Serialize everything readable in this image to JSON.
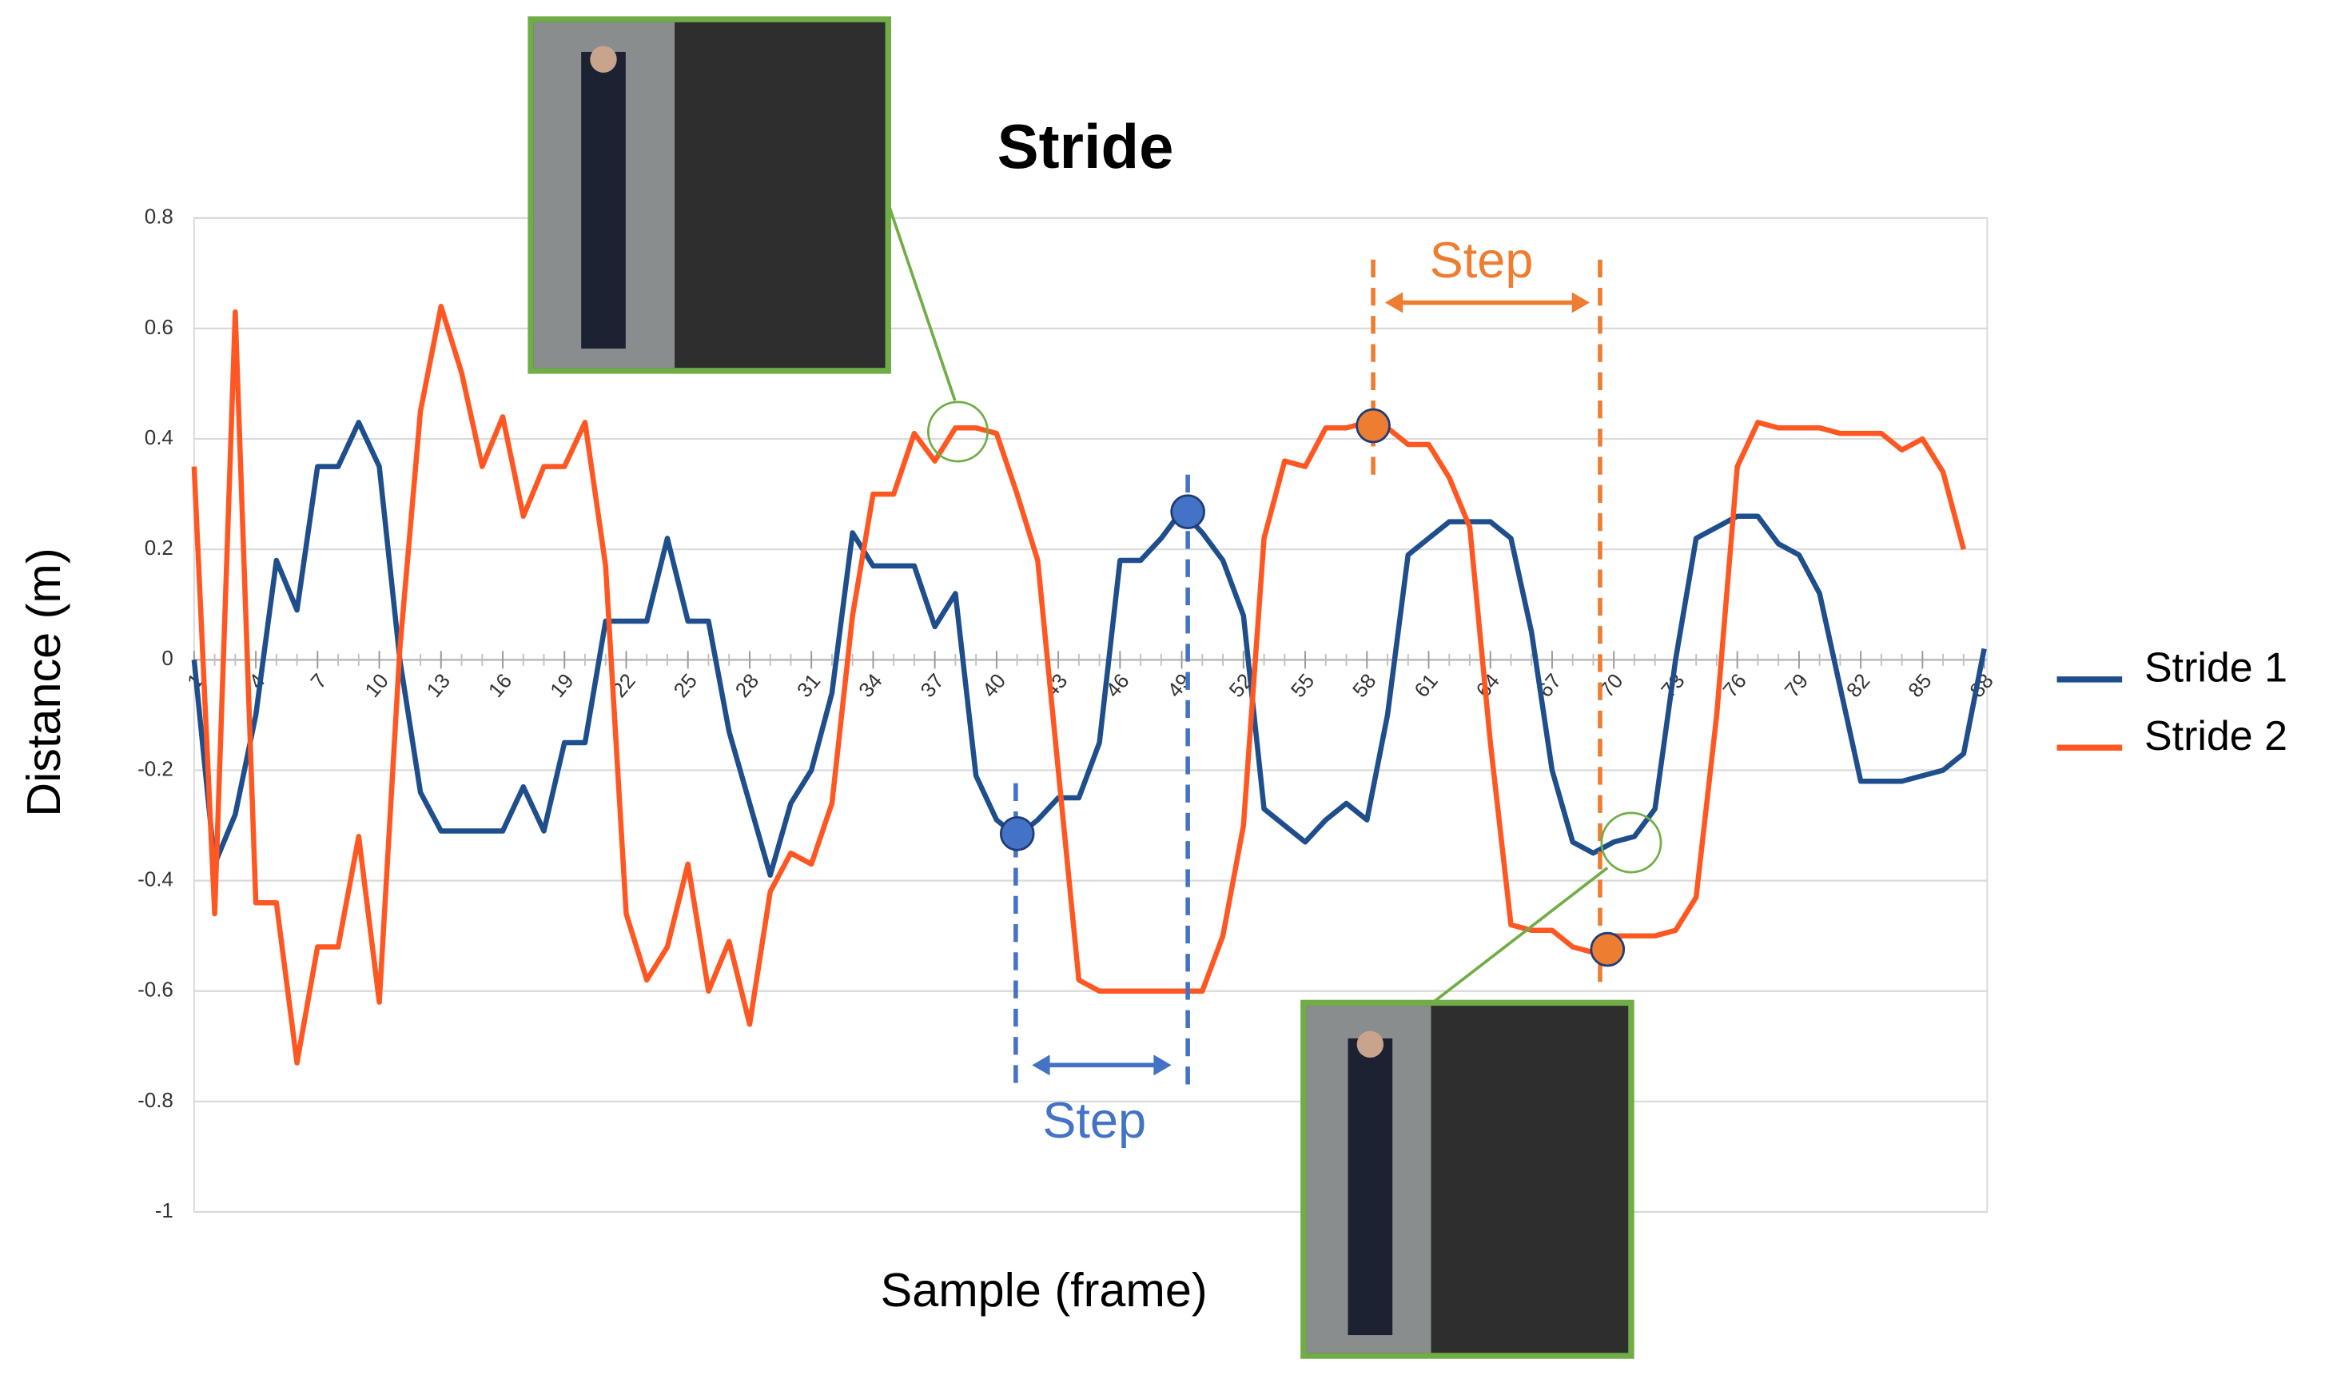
{
  "chart_data": {
    "type": "line",
    "title": "Stride",
    "x_label": "Sample (frame)",
    "y_label": "Distance (m)",
    "x": [
      1,
      2,
      3,
      4,
      5,
      6,
      7,
      8,
      9,
      10,
      11,
      12,
      13,
      14,
      15,
      16,
      17,
      18,
      19,
      20,
      21,
      22,
      23,
      24,
      25,
      26,
      27,
      28,
      29,
      30,
      31,
      32,
      33,
      34,
      35,
      36,
      37,
      38,
      39,
      40,
      41,
      42,
      43,
      44,
      45,
      46,
      47,
      48,
      49,
      50,
      51,
      52,
      53,
      54,
      55,
      56,
      57,
      58,
      59,
      60,
      61,
      62,
      63,
      64,
      65,
      66,
      67,
      68,
      69,
      70,
      71,
      72,
      73,
      74,
      75,
      76,
      77,
      78,
      79,
      80,
      81,
      82,
      83,
      84,
      85,
      86,
      87,
      88
    ],
    "xlim": [
      1,
      88
    ],
    "xticks": [
      1,
      4,
      7,
      10,
      13,
      16,
      19,
      22,
      25,
      28,
      31,
      34,
      37,
      40,
      43,
      46,
      49,
      52,
      55,
      58,
      61,
      64,
      67,
      70,
      73,
      76,
      79,
      82,
      85,
      88
    ],
    "ylim": [
      -1,
      0.8
    ],
    "yticks": [
      0.8,
      0.6,
      0.4,
      0.2,
      0,
      -0.2,
      -0.4,
      -0.6,
      -0.8,
      -1
    ],
    "grid": true,
    "legend": "right",
    "annotations": [
      "Step",
      "Step"
    ],
    "series": [
      {
        "name": "Stride 1",
        "color": "#1f4e8c",
        "values": [
          0,
          -0.37,
          -0.28,
          -0.1,
          0.18,
          0.09,
          0.35,
          0.35,
          0.43,
          0.35,
          0,
          -0.24,
          -0.31,
          -0.31,
          -0.31,
          -0.31,
          -0.23,
          -0.31,
          -0.15,
          -0.15,
          0.07,
          0.07,
          0.07,
          0.22,
          0.07,
          0.07,
          -0.13,
          -0.26,
          -0.39,
          -0.26,
          -0.2,
          -0.06,
          0.23,
          0.17,
          0.17,
          0.17,
          0.06,
          0.12,
          -0.21,
          -0.29,
          -0.32,
          -0.29,
          -0.25,
          -0.25,
          -0.15,
          0.18,
          0.18,
          0.22,
          0.27,
          0.23,
          0.18,
          0.08,
          -0.27,
          -0.3,
          -0.33,
          -0.29,
          -0.26,
          -0.29,
          -0.1,
          0.19,
          0.22,
          0.25,
          0.25,
          0.25,
          0.22,
          0.05,
          -0.2,
          -0.33,
          -0.35,
          -0.33,
          -0.32,
          -0.27,
          0,
          0.22,
          0.24,
          0.26,
          0.26,
          0.21,
          0.19,
          0.12,
          -0.05,
          -0.22,
          -0.22,
          -0.22,
          -0.21,
          -0.2,
          -0.17,
          0.02
        ]
      },
      {
        "name": "Stride 2",
        "color": "#ff5722",
        "values": [
          0.35,
          -0.46,
          0.63,
          -0.44,
          -0.44,
          -0.73,
          -0.52,
          -0.52,
          -0.32,
          -0.62,
          0.02,
          0.45,
          0.64,
          0.52,
          0.35,
          0.44,
          0.26,
          0.35,
          0.35,
          0.43,
          0.17,
          -0.46,
          -0.58,
          -0.52,
          -0.37,
          -0.6,
          -0.51,
          -0.66,
          -0.42,
          -0.35,
          -0.37,
          -0.26,
          0.08,
          0.3,
          0.3,
          0.41,
          0.36,
          0.42,
          0.42,
          0.41,
          0.3,
          0.18,
          -0.2,
          -0.58,
          -0.6,
          -0.6,
          -0.6,
          -0.6,
          -0.6,
          -0.6,
          -0.5,
          -0.3,
          0.22,
          0.36,
          0.35,
          0.42,
          0.42,
          0.43,
          0.42,
          0.39,
          0.39,
          0.33,
          0.24,
          -0.15,
          -0.48,
          -0.49,
          -0.49,
          -0.52,
          -0.53,
          -0.5,
          -0.5,
          -0.5,
          -0.49,
          -0.43,
          -0.1,
          0.35,
          0.43,
          0.42,
          0.42,
          0.42,
          0.41,
          0.41,
          0.41,
          0.38,
          0.4,
          0.34,
          0.2,
          null
        ]
      }
    ]
  }
}
